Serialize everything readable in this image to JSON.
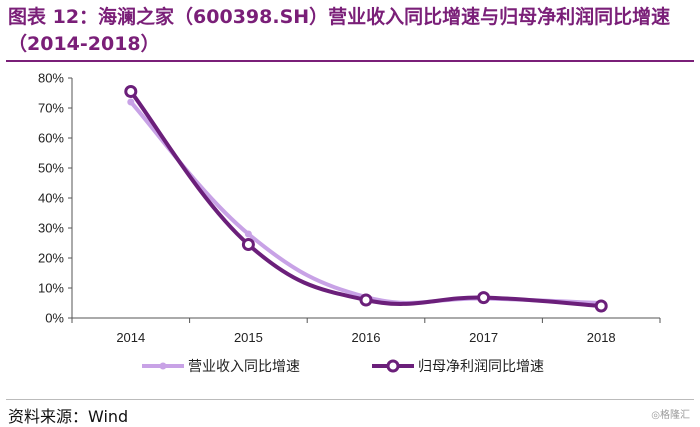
{
  "title": "图表 12：海澜之家（600398.SH）营业收入同比增速与归母净利润同比增速（2014-2018）",
  "source": "资料来源：Wind",
  "watermark": "◎格隆汇",
  "colors": {
    "title": "#7a1f78",
    "revenue_series": "#c8a2e6",
    "profit_series": "#6b1f7a"
  },
  "chart_data": {
    "type": "line",
    "categories": [
      "2014",
      "2015",
      "2016",
      "2017",
      "2018"
    ],
    "y_ticks": [
      "0%",
      "10%",
      "20%",
      "30%",
      "40%",
      "50%",
      "60%",
      "70%",
      "80%"
    ],
    "ylim": [
      0,
      80
    ],
    "unit": "%",
    "grid": false,
    "legend_position": "bottom",
    "series": [
      {
        "name": "营业收入同比增速",
        "values": [
          72,
          28,
          7,
          6.5,
          5
        ],
        "marker": "dot"
      },
      {
        "name": "归母净利润同比增速",
        "values": [
          75.5,
          24.5,
          6,
          6.8,
          4
        ],
        "marker": "ring"
      }
    ]
  }
}
